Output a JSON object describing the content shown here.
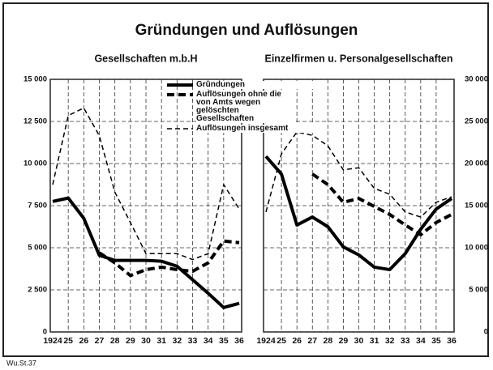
{
  "title": "Gründungen und Auflösungen",
  "source": "Wu.St.37",
  "chart_data": [
    {
      "type": "line",
      "subtitle": "Gesellschaften m.b.H",
      "categories": [
        "1924",
        "25",
        "26",
        "27",
        "28",
        "29",
        "30",
        "31",
        "32",
        "33",
        "34",
        "35",
        "36"
      ],
      "ylim": [
        0,
        15000
      ],
      "yticks": [
        {
          "value": 0,
          "label": "0"
        },
        {
          "value": 2500,
          "label": "2 500"
        },
        {
          "value": 5000,
          "label": "5 000"
        },
        {
          "value": 7500,
          "label": "7 500"
        },
        {
          "value": 10000,
          "label": "10 000"
        },
        {
          "value": 12500,
          "label": "12 500"
        },
        {
          "value": 15000,
          "label": "15 000"
        }
      ],
      "y_axis_position": "left",
      "grid": true,
      "legend": "upper right",
      "series": [
        {
          "name": "Gründungen",
          "color": "#000",
          "line_style": "solid",
          "line_width": 4,
          "values": [
            7750,
            7950,
            6750,
            4550,
            4250,
            4250,
            4250,
            4200,
            3900,
            3100,
            2300,
            1450,
            1700
          ]
        },
        {
          "name": "Auflösungen ohne die von Amts wegen gelöschten Gesellschaften",
          "color": "#000",
          "line_style": "dashed",
          "line_width": 4,
          "values": [
            null,
            null,
            null,
            4700,
            4100,
            3350,
            3700,
            3850,
            3700,
            3600,
            4100,
            5400,
            5300
          ]
        },
        {
          "name": "Auflösungen insgesamt",
          "color": "#000",
          "line_style": "dashed",
          "line_width": 1.5,
          "values": [
            8750,
            12850,
            13300,
            11650,
            8300,
            6500,
            4650,
            4650,
            4650,
            4300,
            4650,
            8750,
            7300
          ]
        }
      ]
    },
    {
      "type": "line",
      "subtitle": "Einzelfirmen u. Personalgesellschaften",
      "categories": [
        "1924",
        "25",
        "26",
        "27",
        "28",
        "29",
        "30",
        "31",
        "32",
        "33",
        "34",
        "35",
        "36"
      ],
      "ylim": [
        0,
        30000
      ],
      "yticks": [
        {
          "value": 0,
          "label": "0"
        },
        {
          "value": 5000,
          "label": "5 000"
        },
        {
          "value": 10000,
          "label": "10 000"
        },
        {
          "value": 15000,
          "label": "15 000"
        },
        {
          "value": 20000,
          "label": "20 000"
        },
        {
          "value": 25000,
          "label": "25 000"
        },
        {
          "value": 30000,
          "label": "30 000"
        }
      ],
      "y_axis_position": "right",
      "grid": true,
      "series": [
        {
          "color": "#000",
          "line_style": "solid",
          "line_width": 4,
          "values": [
            20850,
            18750,
            12700,
            13650,
            12500,
            10100,
            9150,
            7700,
            7400,
            9300,
            12200,
            14600,
            15850
          ]
        },
        {
          "color": "#000",
          "line_style": "dashed",
          "line_width": 4,
          "values": [
            null,
            null,
            null,
            18750,
            17500,
            15400,
            15850,
            14900,
            13950,
            12700,
            11550,
            13000,
            13950
          ]
        },
        {
          "color": "#000",
          "line_style": "dashed",
          "line_width": 1.5,
          "values": [
            14250,
            21150,
            23750,
            23350,
            22100,
            19250,
            19500,
            17050,
            16350,
            14250,
            13650,
            15400,
            16050
          ]
        }
      ]
    }
  ]
}
